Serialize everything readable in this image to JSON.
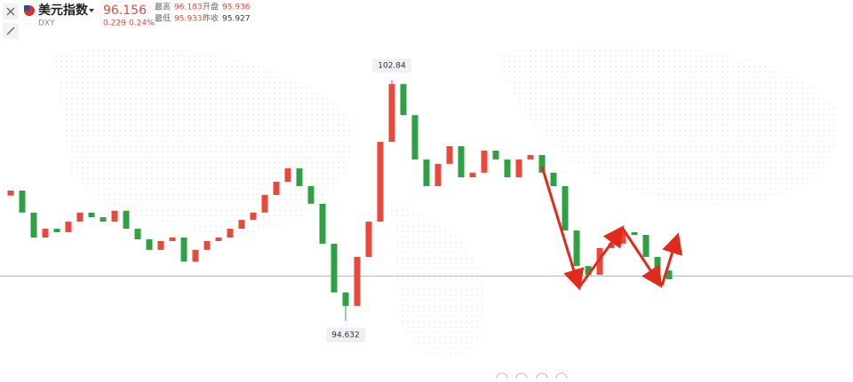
{
  "header": {
    "name": "美元指数",
    "symbol": "DXY",
    "price": 96.156,
    "change": "0.229",
    "change_pct": "0.24%",
    "stats": [
      {
        "label": "最高",
        "value": "96.183"
      },
      {
        "label": "开盘",
        "value": "95.936"
      },
      {
        "label": "最低",
        "value": "95.933"
      },
      {
        "label": "昨收",
        "value": "95.927"
      }
    ]
  },
  "chart": {
    "type": "candlestick",
    "open": [
      98.9,
      99.07,
      98.32,
      97.47,
      97.77,
      97.65,
      98.01,
      98.32,
      98.16,
      98.01,
      98.38,
      97.77,
      97.41,
      97.05,
      97.35,
      97.47,
      96.65,
      97.05,
      97.35,
      97.47,
      97.77,
      98.07,
      98.32,
      98.92,
      99.37,
      99.83,
      99.22,
      98.62,
      97.26,
      95.6,
      95.14,
      96.81,
      98.01,
      100.73,
      102.7,
      101.64,
      100.13,
      99.22,
      99.98,
      100.58,
      99.52,
      99.68,
      100.43,
      100.13,
      99.52,
      100.13,
      100.28,
      99.68,
      99.22,
      97.71,
      96.5,
      96.2,
      97.11,
      97.26,
      97.65,
      97.56,
      96.81,
      96.35
    ],
    "close": [
      99.07,
      98.32,
      97.47,
      97.77,
      97.65,
      98.01,
      98.32,
      98.16,
      98.01,
      98.38,
      97.77,
      97.41,
      97.05,
      97.35,
      97.47,
      96.65,
      97.05,
      97.35,
      97.47,
      97.77,
      98.07,
      98.32,
      98.92,
      99.37,
      99.83,
      99.22,
      98.62,
      97.26,
      95.6,
      95.14,
      96.81,
      98.01,
      100.73,
      102.7,
      101.64,
      100.13,
      99.22,
      99.98,
      100.58,
      99.52,
      99.68,
      100.43,
      100.13,
      99.52,
      100.13,
      100.28,
      99.68,
      99.22,
      97.71,
      96.5,
      96.2,
      97.11,
      97.26,
      97.65,
      97.56,
      96.81,
      96.35,
      96.05
    ],
    "high_label": 102.84,
    "low_label": 94.632,
    "ylim": [
      92.67,
      105.56
    ],
    "up_color": "#e8493b",
    "down_color": "#2fa044"
  }
}
